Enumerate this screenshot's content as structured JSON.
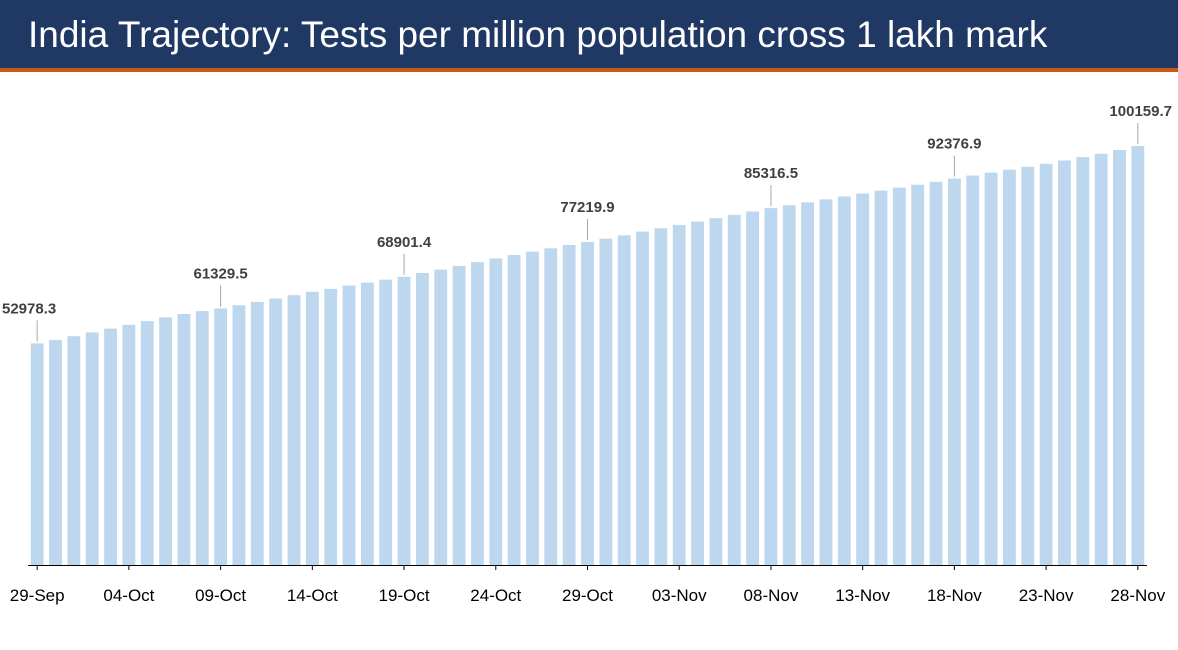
{
  "header": {
    "title": "India Trajectory: Tests per million population cross 1 lakh mark"
  },
  "colors": {
    "header_background": "#1f3864",
    "header_rule": "#c55a11",
    "bar": "#bdd7ee"
  },
  "chart_data": {
    "type": "bar",
    "title": "",
    "xlabel": "",
    "ylabel": "",
    "grid": false,
    "legend": "none",
    "ylim": [
      0,
      100159.7
    ],
    "x_tick_labels": [
      "29-Sep",
      "04-Oct",
      "09-Oct",
      "14-Oct",
      "19-Oct",
      "24-Oct",
      "29-Oct",
      "03-Nov",
      "08-Nov",
      "13-Nov",
      "18-Nov",
      "23-Nov",
      "28-Nov"
    ],
    "categories": [
      "29-Sep",
      "30-Sep",
      "01-Oct",
      "02-Oct",
      "03-Oct",
      "04-Oct",
      "05-Oct",
      "06-Oct",
      "07-Oct",
      "08-Oct",
      "09-Oct",
      "10-Oct",
      "11-Oct",
      "12-Oct",
      "13-Oct",
      "14-Oct",
      "15-Oct",
      "16-Oct",
      "17-Oct",
      "18-Oct",
      "19-Oct",
      "20-Oct",
      "21-Oct",
      "22-Oct",
      "23-Oct",
      "24-Oct",
      "25-Oct",
      "26-Oct",
      "27-Oct",
      "28-Oct",
      "29-Oct",
      "30-Oct",
      "31-Oct",
      "01-Nov",
      "02-Nov",
      "03-Nov",
      "04-Nov",
      "05-Nov",
      "06-Nov",
      "07-Nov",
      "08-Nov",
      "09-Nov",
      "10-Nov",
      "11-Nov",
      "12-Nov",
      "13-Nov",
      "14-Nov",
      "15-Nov",
      "16-Nov",
      "17-Nov",
      "18-Nov",
      "19-Nov",
      "20-Nov",
      "21-Nov",
      "22-Nov",
      "23-Nov",
      "24-Nov",
      "25-Nov",
      "26-Nov",
      "27-Nov",
      "28-Nov"
    ],
    "values": [
      52978.3,
      53800,
      54700,
      55600,
      56500,
      57400,
      58300,
      59200,
      60000,
      60700,
      61329.5,
      62100,
      62900,
      63700,
      64500,
      65300,
      66000,
      66800,
      67500,
      68200,
      68901.4,
      69800,
      70600,
      71500,
      72400,
      73300,
      74100,
      74900,
      75700,
      76500,
      77219.9,
      78000,
      78800,
      79700,
      80500,
      81300,
      82100,
      82900,
      83700,
      84500,
      85316.5,
      86000,
      86700,
      87400,
      88100,
      88800,
      89500,
      90200,
      90900,
      91600,
      92376.9,
      93100,
      93800,
      94500,
      95200,
      95900,
      96700,
      97500,
      98300,
      99200,
      100159.7
    ],
    "data_labels": [
      {
        "category": "29-Sep",
        "text": "52978.3"
      },
      {
        "category": "09-Oct",
        "text": "61329.5"
      },
      {
        "category": "19-Oct",
        "text": "68901.4"
      },
      {
        "category": "29-Oct",
        "text": "77219.9"
      },
      {
        "category": "08-Nov",
        "text": "85316.5"
      },
      {
        "category": "18-Nov",
        "text": "92376.9"
      },
      {
        "category": "28-Nov",
        "text": "100159.7"
      }
    ]
  }
}
